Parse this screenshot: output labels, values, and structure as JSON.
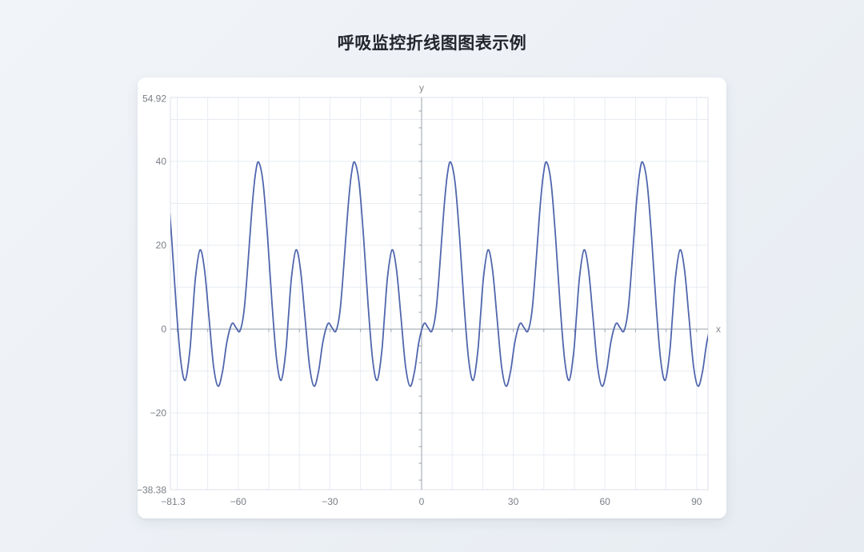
{
  "page": {
    "title": "呼吸监控折线图图表示例",
    "background_color": "#edf1f6",
    "card_color": "#ffffff"
  },
  "chart_data": {
    "type": "line",
    "title": "呼吸监控折线图图表示例",
    "xlabel": "x",
    "ylabel": "y",
    "xlim": [
      -82.2,
      93.7
    ],
    "ylim": [
      -38.38,
      54.92
    ],
    "x_bound_label": "−81.3",
    "y_bound_labels": {
      "top": "54.92",
      "bottom": "−38.38"
    },
    "x_ticks": [
      {
        "v": -81.3,
        "label": "−81.3"
      },
      {
        "v": -60,
        "label": "−60"
      },
      {
        "v": -30,
        "label": "−30"
      },
      {
        "v": 0,
        "label": "0"
      },
      {
        "v": 30,
        "label": "30"
      },
      {
        "v": 60,
        "label": "60"
      },
      {
        "v": 90,
        "label": "90"
      }
    ],
    "y_ticks": [
      {
        "v": -38.38,
        "label": "−38.38"
      },
      {
        "v": -20,
        "label": "−20"
      },
      {
        "v": 0,
        "label": "0"
      },
      {
        "v": 20,
        "label": "20"
      },
      {
        "v": 40,
        "label": "40"
      }
    ],
    "y_top_tick": {
      "v": 54.92,
      "label": "54.92"
    },
    "grid": true,
    "grid_step_x": 10,
    "grid_step_y": 10,
    "minor_tick_step_x": 10,
    "minor_tick_step_y": 4,
    "line_color": "#5066ad",
    "grid_color": "#e7ecf3",
    "frame_color": "#dce2ea",
    "axis_color": "#9aa2ab",
    "tick_text_color": "#7a7f87",
    "series": [
      {
        "periodic": true,
        "period": 31.416,
        "base_peak_x": 9.5,
        "tile_k_range": [
          -3,
          2
        ],
        "extrema": {
          "primary_peak_y": 39.8,
          "secondary_peak_y": 18.9,
          "trough_ys": [
            -12.2,
            -13.6
          ],
          "micro_bump_y": 1.3,
          "micro_dip_y": -0.5
        },
        "template_points": [
          [
            0,
            39.8
          ],
          [
            1.47,
            34.8
          ],
          [
            2.94,
            21.8
          ],
          [
            4.41,
            5.8
          ],
          [
            5.88,
            -7.2
          ],
          [
            7.35,
            -12.2
          ],
          [
            8.82,
            -5.8
          ],
          [
            9.8,
            3.35
          ],
          [
            10.78,
            12.5
          ],
          [
            12.25,
            18.9
          ],
          [
            13.72,
            14.1
          ],
          [
            15.19,
            2.65
          ],
          [
            16.66,
            -8.8
          ],
          [
            18.13,
            -13.6
          ],
          [
            19.6,
            -10.1
          ],
          [
            21.07,
            -2.9
          ],
          [
            22.69,
            1.3
          ],
          [
            23.96,
            0.4
          ],
          [
            25.24,
            -0.5
          ],
          [
            26.51,
            3.6
          ],
          [
            27.49,
            11.4
          ],
          [
            28.47,
            21.2
          ],
          [
            29.45,
            30.6
          ],
          [
            30.43,
            37.3
          ]
        ]
      }
    ]
  }
}
